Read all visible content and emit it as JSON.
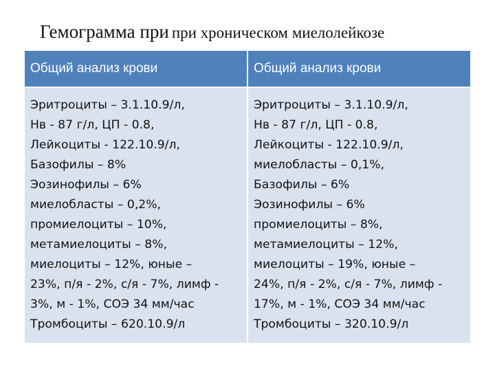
{
  "title": {
    "main": "Гемограмма при",
    "rest": "при хроническом миелолейкозе"
  },
  "table": {
    "headers": [
      "Общий анализ крови",
      "Общий анализ крови"
    ],
    "columns": [
      [
        "Эритроциты – 3.1.10.9/л,",
        "Нв - 87 г/л, ЦП - 0.8,",
        "Лейкоциты - 122.10.9/л,",
        "Базофилы – 8%",
        "Эозинофилы – 6%",
        "миелобласты – 0,2%,",
        "промиелоциты – 10%,",
        "метамиелоциты – 8%,",
        "миелоциты – 12%, юные –",
        "23%, п/я - 2%, с/я - 7%, лимф -",
        "3%, м - 1%, СОЭ 34 мм/час",
        "Тромбоциты – 620.10.9/л"
      ],
      [
        "Эритроциты – 3.1.10.9/л,",
        "Нв - 87 г/л, ЦП - 0.8,",
        "Лейкоциты - 122.10.9/л,",
        "миелобласты – 0,1%,",
        "Базофилы – 6%",
        "Эозинофилы – 6%",
        "промиелоциты – 8%,",
        "метамиелоциты – 12%,",
        "миелоциты – 19%, юные –",
        "24%, п/я - 2%, с/я - 7%, лимф -",
        "17%, м - 1%, СОЭ 34 мм/час",
        "Тромбоциты – 320.10.9/л"
      ]
    ]
  }
}
